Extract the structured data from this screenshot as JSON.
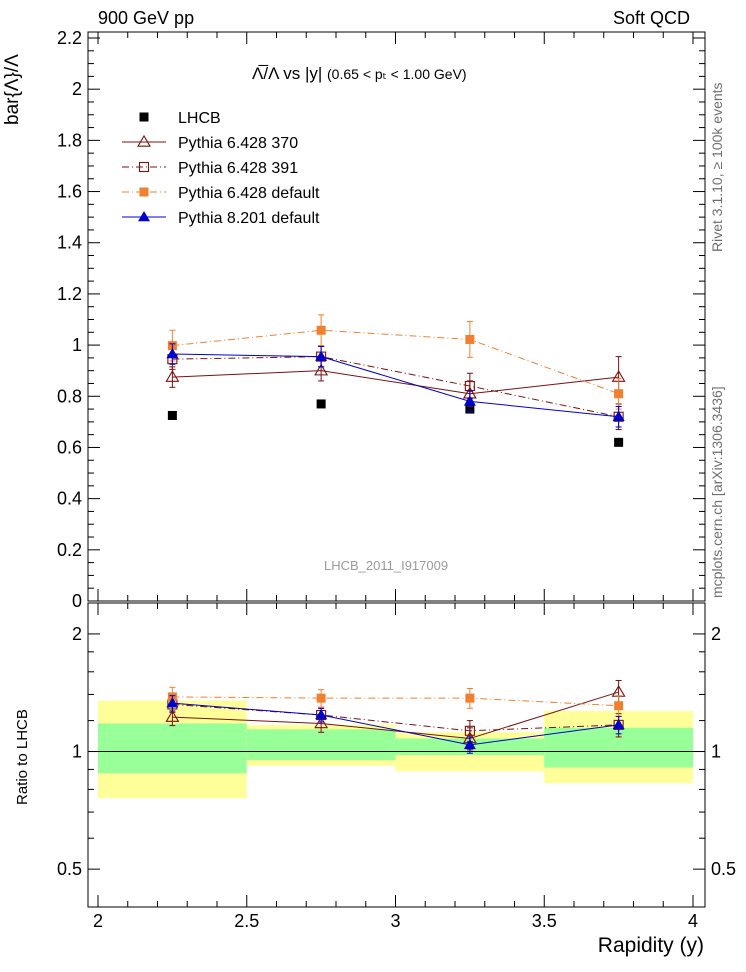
{
  "header": {
    "left": "900 GeV pp",
    "right": "Soft QCD"
  },
  "side_labels": {
    "rivet": "Rivet 3.1.10, ≥ 100k events",
    "mcplots": "mcplots.cern.ch [arXiv:1306.3436]"
  },
  "watermark": "LHCB_2011_I917009",
  "plot_title": {
    "main": "Λ̅/Λ vs |y|",
    "sub": "(0.65 < pₜ < 1.00 GeV)"
  },
  "chart_data": [
    {
      "type": "scatter",
      "panel": "main",
      "ylabel": "bar{Λ}/Λ",
      "ylim": [
        0,
        2.2
      ],
      "yticks": [
        "0",
        "0.2",
        "0.4",
        "0.6",
        "0.8",
        "1",
        "1.2",
        "1.4",
        "1.6",
        "1.8",
        "2",
        "2.2"
      ],
      "ytick_values": [
        0,
        0.2,
        0.4,
        0.6,
        0.8,
        1.0,
        1.2,
        1.4,
        1.6,
        1.8,
        2.0,
        2.2
      ],
      "x": [
        2.25,
        2.75,
        3.25,
        3.75
      ],
      "xlim": [
        2,
        4
      ],
      "legend": {
        "placement": "top-left"
      },
      "series": [
        {
          "name": "LHCB",
          "marker": "square-filled",
          "color": "#000000",
          "line": "none",
          "values": [
            0.725,
            0.77,
            0.75,
            0.62
          ],
          "errors": [
            0.01,
            0.01,
            0.01,
            0.01
          ]
        },
        {
          "name": "Pythia 6.428 370",
          "marker": "triangle-open",
          "color": "#7b1010",
          "line": "solid",
          "values": [
            0.875,
            0.9,
            0.81,
            0.875
          ],
          "errors": [
            0.04,
            0.04,
            0.05,
            0.08
          ]
        },
        {
          "name": "Pythia 6.428 391",
          "marker": "square-open",
          "color": "#7b1010",
          "line": "dashdot",
          "values": [
            0.945,
            0.955,
            0.84,
            0.72
          ],
          "errors": [
            0.04,
            0.04,
            0.05,
            0.05
          ]
        },
        {
          "name": "Pythia 6.428 default",
          "marker": "square-filled",
          "color": "#f08030",
          "line": "dashdot",
          "values": [
            0.998,
            1.058,
            1.022,
            0.81
          ],
          "errors": [
            0.06,
            0.06,
            0.07,
            0.06
          ]
        },
        {
          "name": "Pythia 8.201 default",
          "marker": "triangle-filled",
          "color": "#0000cc",
          "line": "solid",
          "values": [
            0.965,
            0.955,
            0.78,
            0.72
          ],
          "errors": [
            0.04,
            0.04,
            0.04,
            0.04
          ]
        }
      ]
    },
    {
      "type": "scatter",
      "panel": "ratio",
      "ylabel": "Ratio to LHCB",
      "xlabel": "Rapidity (y)",
      "yscale": "log",
      "ylim": [
        0.4,
        2.4
      ],
      "yticks": [
        "0.5",
        "1",
        "2"
      ],
      "ytick_values": [
        0.5,
        1,
        2
      ],
      "xticks": [
        "2",
        "2.5",
        "3",
        "3.5",
        "4"
      ],
      "xtick_values": [
        2,
        2.5,
        3,
        3.5,
        4
      ],
      "x": [
        2.25,
        2.75,
        3.25,
        3.75
      ],
      "bands": {
        "bins": [
          [
            2.0,
            2.5
          ],
          [
            2.5,
            3.0
          ],
          [
            3.0,
            3.5
          ],
          [
            3.5,
            4.0
          ]
        ],
        "inner": [
          [
            0.88,
            1.18
          ],
          [
            0.95,
            1.14
          ],
          [
            0.98,
            1.08
          ],
          [
            0.91,
            1.15
          ]
        ],
        "outer": [
          [
            0.76,
            1.35
          ],
          [
            0.92,
            1.17
          ],
          [
            0.89,
            1.12
          ],
          [
            0.83,
            1.27
          ]
        ],
        "inner_color": "#99ff99",
        "outer_color": "#ffff99"
      },
      "series": [
        {
          "name": "Pythia 6.428 370",
          "values": [
            1.225,
            1.18,
            1.08,
            1.42
          ],
          "errors": [
            0.06,
            0.06,
            0.07,
            0.1
          ]
        },
        {
          "name": "Pythia 6.428 391",
          "values": [
            1.32,
            1.24,
            1.13,
            1.17
          ],
          "errors": [
            0.06,
            0.05,
            0.07,
            0.08
          ]
        },
        {
          "name": "Pythia 6.428 default",
          "values": [
            1.38,
            1.37,
            1.37,
            1.31
          ],
          "errors": [
            0.08,
            0.07,
            0.08,
            0.08
          ]
        },
        {
          "name": "Pythia 8.201 default",
          "values": [
            1.33,
            1.24,
            1.04,
            1.17
          ],
          "errors": [
            0.06,
            0.05,
            0.05,
            0.06
          ]
        }
      ]
    }
  ]
}
